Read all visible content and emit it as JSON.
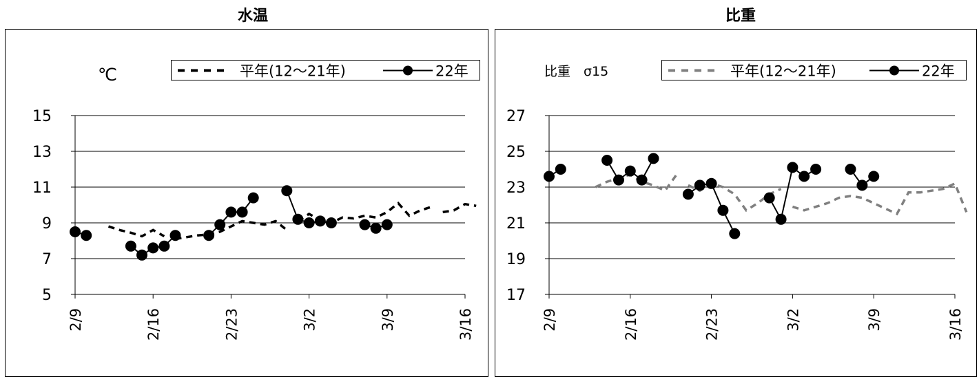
{
  "chart_data": [
    {
      "type": "line",
      "title": "水温",
      "unit_label": "℃",
      "ylim": [
        5,
        15
      ],
      "yticks": [
        5,
        7,
        9,
        11,
        13,
        15
      ],
      "xlim": [
        "2/9",
        "3/16"
      ],
      "xticks": [
        "2/9",
        "2/16",
        "2/23",
        "3/2",
        "3/9",
        "3/16"
      ],
      "grid": true,
      "legend_position": "top-right",
      "series": [
        {
          "name": "平年(12～21年)",
          "style": "dashed",
          "color": "#000000",
          "segments": [
            [
              [
                "2/12",
                8.8
              ],
              [
                "2/13",
                8.6
              ],
              [
                "2/14",
                8.45
              ],
              [
                "2/15",
                8.25
              ],
              [
                "2/16",
                8.6
              ],
              [
                "2/17",
                8.25
              ]
            ],
            [
              [
                "2/18",
                8.1
              ],
              [
                "2/19",
                8.2
              ],
              [
                "2/20",
                8.3
              ],
              [
                "2/21",
                8.35
              ],
              [
                "2/22",
                8.5
              ],
              [
                "2/23",
                8.8
              ],
              [
                "2/24",
                9.1
              ],
              [
                "2/25",
                9.0
              ],
              [
                "2/26",
                8.9
              ],
              [
                "2/27",
                9.1
              ],
              [
                "2/28",
                8.6
              ]
            ],
            [
              [
                "3/1",
                9.1
              ],
              [
                "3/2",
                9.5
              ],
              [
                "3/3",
                9.15
              ],
              [
                "3/4",
                9.0
              ],
              [
                "3/5",
                9.3
              ],
              [
                "3/6",
                9.25
              ],
              [
                "3/7",
                9.4
              ],
              [
                "3/8",
                9.3
              ],
              [
                "3/9",
                9.6
              ],
              [
                "3/10",
                10.1
              ],
              [
                "3/11",
                9.4
              ],
              [
                "3/12",
                9.7
              ],
              [
                "3/13",
                9.9
              ]
            ],
            [
              [
                "3/14",
                9.6
              ],
              [
                "3/15",
                9.7
              ],
              [
                "3/16",
                10.05
              ],
              [
                "3/17",
                9.95
              ]
            ]
          ]
        },
        {
          "name": "22年",
          "style": "solid-marker",
          "color": "#000000",
          "segments": [
            [
              [
                "2/9",
                8.5
              ],
              [
                "2/10",
                8.3
              ]
            ],
            [
              [
                "2/14",
                7.7
              ],
              [
                "2/15",
                7.2
              ],
              [
                "2/16",
                7.6
              ],
              [
                "2/17",
                7.7
              ],
              [
                "2/18",
                8.3
              ]
            ],
            [
              [
                "2/21",
                8.3
              ],
              [
                "2/22",
                8.9
              ],
              [
                "2/23",
                9.6
              ],
              [
                "2/24",
                9.6
              ],
              [
                "2/25",
                10.4
              ]
            ],
            [
              [
                "2/28",
                10.8
              ],
              [
                "3/1",
                9.2
              ],
              [
                "3/2",
                9.0
              ],
              [
                "3/3",
                9.1
              ],
              [
                "3/4",
                9.0
              ]
            ],
            [
              [
                "3/7",
                8.9
              ],
              [
                "3/8",
                8.7
              ],
              [
                "3/9",
                8.9
              ]
            ]
          ]
        }
      ]
    },
    {
      "type": "line",
      "title": "比重",
      "unit_label": "比重　σ15",
      "ylim": [
        17,
        27
      ],
      "yticks": [
        17,
        19,
        21,
        23,
        25,
        27
      ],
      "xlim": [
        "2/9",
        "3/16"
      ],
      "xticks": [
        "2/9",
        "2/16",
        "2/23",
        "3/2",
        "3/9",
        "3/16"
      ],
      "grid": true,
      "legend_position": "top-right",
      "series": [
        {
          "name": "平年(12～21年)",
          "style": "dashed",
          "color": "#808080",
          "segments": [
            [
              [
                "2/13",
                23.0
              ],
              [
                "2/14",
                23.3
              ],
              [
                "2/15",
                23.5
              ],
              [
                "2/16",
                23.7
              ],
              [
                "2/17",
                23.3
              ],
              [
                "2/18",
                23.1
              ],
              [
                "2/19",
                22.8
              ],
              [
                "2/20",
                23.7
              ]
            ],
            [
              [
                "2/21",
                23.1
              ],
              [
                "2/22",
                22.8
              ],
              [
                "2/23",
                23.2
              ],
              [
                "2/24",
                23.0
              ],
              [
                "2/25",
                22.6
              ],
              [
                "2/26",
                21.7
              ],
              [
                "2/27",
                22.1
              ],
              [
                "2/28",
                22.6
              ],
              [
                "3/1",
                22.9
              ]
            ],
            [
              [
                "3/2",
                21.9
              ],
              [
                "3/3",
                21.7
              ],
              [
                "3/4",
                21.9
              ],
              [
                "3/5",
                22.1
              ],
              [
                "3/6",
                22.4
              ],
              [
                "3/7",
                22.5
              ],
              [
                "3/8",
                22.4
              ],
              [
                "3/9",
                22.1
              ],
              [
                "3/10",
                21.8
              ],
              [
                "3/11",
                21.5
              ],
              [
                "3/12",
                22.7
              ],
              [
                "3/13",
                22.7
              ],
              [
                "3/14",
                22.8
              ],
              [
                "3/15",
                22.9
              ],
              [
                "3/16",
                23.2
              ],
              [
                "3/17",
                21.6
              ]
            ]
          ]
        },
        {
          "name": "22年",
          "style": "solid-marker",
          "color": "#000000",
          "segments": [
            [
              [
                "2/9",
                23.6
              ],
              [
                "2/10",
                24.0
              ]
            ],
            [
              [
                "2/14",
                24.5
              ],
              [
                "2/15",
                23.4
              ],
              [
                "2/16",
                23.9
              ],
              [
                "2/17",
                23.4
              ],
              [
                "2/18",
                24.6
              ]
            ],
            [
              [
                "2/21",
                22.6
              ],
              [
                "2/22",
                23.1
              ],
              [
                "2/23",
                23.2
              ],
              [
                "2/24",
                21.7
              ],
              [
                "2/25",
                20.4
              ]
            ],
            [
              [
                "2/28",
                22.4
              ],
              [
                "3/1",
                21.2
              ],
              [
                "3/2",
                24.1
              ],
              [
                "3/3",
                23.6
              ],
              [
                "3/4",
                24.0
              ]
            ],
            [
              [
                "3/7",
                24.0
              ],
              [
                "3/8",
                23.1
              ],
              [
                "3/9",
                23.6
              ]
            ]
          ]
        }
      ]
    }
  ]
}
